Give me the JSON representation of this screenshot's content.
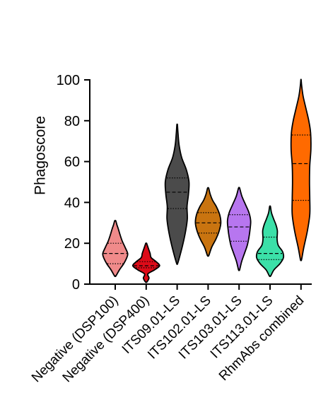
{
  "chart_data": {
    "type": "violin",
    "title": "",
    "xlabel": "",
    "ylabel": "Phagoscore",
    "ylim": [
      0,
      100
    ],
    "yticks": [
      0,
      20,
      40,
      60,
      80,
      100
    ],
    "grid": false,
    "legend": "none",
    "categories": [
      "Negative (DSP100)",
      "Negative (DSP400)",
      "ITS09.01-LS",
      "ITS102.01-LS",
      "ITS103.01-LS",
      "ITS113.01-LS",
      "RhmAbs combined"
    ],
    "series": [
      {
        "color": "#f08a8a",
        "min": 4,
        "max": 31,
        "q1": 10,
        "median": 15,
        "q3": 20,
        "density": [
          [
            4,
            0.05
          ],
          [
            7,
            0.3
          ],
          [
            10,
            0.6
          ],
          [
            13,
            0.82
          ],
          [
            15,
            0.88
          ],
          [
            18,
            0.7
          ],
          [
            21,
            0.5
          ],
          [
            24,
            0.35
          ],
          [
            27,
            0.22
          ],
          [
            29,
            0.12
          ],
          [
            31,
            0.04
          ]
        ]
      },
      {
        "color": "#dd0b18",
        "min": 1,
        "max": 20,
        "q1": 8,
        "median": 9,
        "q3": 11,
        "density": [
          [
            1,
            0.05
          ],
          [
            3,
            0.2
          ],
          [
            5,
            0.12
          ],
          [
            7,
            0.6
          ],
          [
            9,
            0.95
          ],
          [
            11,
            0.7
          ],
          [
            13,
            0.35
          ],
          [
            15,
            0.28
          ],
          [
            17,
            0.18
          ],
          [
            19,
            0.08
          ],
          [
            20,
            0.03
          ]
        ]
      },
      {
        "color": "#4b4b4b",
        "min": 10,
        "max": 78,
        "q1": 37,
        "median": 45,
        "q3": 52,
        "density": [
          [
            10,
            0.03
          ],
          [
            14,
            0.2
          ],
          [
            20,
            0.42
          ],
          [
            26,
            0.6
          ],
          [
            32,
            0.72
          ],
          [
            38,
            0.7
          ],
          [
            44,
            0.8
          ],
          [
            50,
            0.84
          ],
          [
            56,
            0.65
          ],
          [
            62,
            0.32
          ],
          [
            68,
            0.14
          ],
          [
            74,
            0.06
          ],
          [
            78,
            0.02
          ]
        ]
      },
      {
        "color": "#c97410",
        "min": 14,
        "max": 47,
        "q1": 25,
        "median": 30,
        "q3": 35,
        "density": [
          [
            14,
            0.05
          ],
          [
            18,
            0.25
          ],
          [
            22,
            0.55
          ],
          [
            26,
            0.78
          ],
          [
            30,
            0.9
          ],
          [
            34,
            0.82
          ],
          [
            38,
            0.58
          ],
          [
            41,
            0.32
          ],
          [
            44,
            0.15
          ],
          [
            47,
            0.04
          ]
        ]
      },
      {
        "color": "#b776ef",
        "min": 7,
        "max": 47,
        "q1": 21,
        "median": 28,
        "q3": 34,
        "density": [
          [
            7,
            0.04
          ],
          [
            11,
            0.18
          ],
          [
            15,
            0.38
          ],
          [
            19,
            0.58
          ],
          [
            23,
            0.7
          ],
          [
            27,
            0.78
          ],
          [
            31,
            0.82
          ],
          [
            35,
            0.7
          ],
          [
            39,
            0.45
          ],
          [
            43,
            0.2
          ],
          [
            47,
            0.04
          ]
        ]
      },
      {
        "color": "#3be0a8",
        "min": 4,
        "max": 38,
        "q1": 12,
        "median": 15,
        "q3": 23,
        "density": [
          [
            4,
            0.05
          ],
          [
            7,
            0.28
          ],
          [
            10,
            0.7
          ],
          [
            13,
            0.95
          ],
          [
            16,
            0.88
          ],
          [
            19,
            0.58
          ],
          [
            22,
            0.5
          ],
          [
            26,
            0.52
          ],
          [
            29,
            0.42
          ],
          [
            32,
            0.25
          ],
          [
            35,
            0.1
          ],
          [
            38,
            0.03
          ]
        ]
      },
      {
        "color": "#ff6a00",
        "min": 12,
        "max": 100,
        "q1": 41,
        "median": 59,
        "q3": 73,
        "density": [
          [
            12,
            0.04
          ],
          [
            18,
            0.2
          ],
          [
            26,
            0.45
          ],
          [
            34,
            0.62
          ],
          [
            42,
            0.62
          ],
          [
            50,
            0.6
          ],
          [
            58,
            0.62
          ],
          [
            66,
            0.7
          ],
          [
            74,
            0.68
          ],
          [
            80,
            0.55
          ],
          [
            86,
            0.35
          ],
          [
            92,
            0.15
          ],
          [
            97,
            0.05
          ],
          [
            100,
            0.01
          ]
        ]
      }
    ]
  }
}
